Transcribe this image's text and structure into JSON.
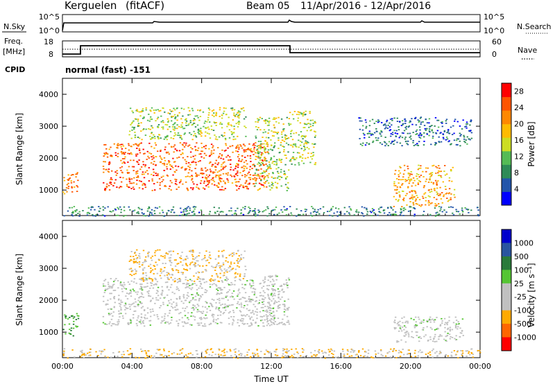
{
  "header": {
    "station": "Kerguelen",
    "processing": "(fitACF)",
    "beam": "Beam 05",
    "date_range": "11/Apr/2016 - 12/Apr/2016"
  },
  "status_panels": {
    "nsky_label": "N.Sky",
    "nsky_ticks": [
      "10^5",
      "10^0"
    ],
    "nsearch_label": "N.Search",
    "nsearch_ticks": [
      "10^5",
      "10^0"
    ],
    "freq_label_top": "Freq.",
    "freq_label_unit": "[MHz]",
    "freq_ticks": [
      "18",
      "8"
    ],
    "nave_label": "Nave",
    "nave_ticks": [
      "60",
      "0"
    ],
    "cpid_label": "CPID",
    "cpid_text": "normal (fast) -151"
  },
  "colors": {
    "power_scale": [
      "#0000ff",
      "#2255aa",
      "#2e8b57",
      "#55bb55",
      "#ccdd22",
      "#ffbb00",
      "#ff8800",
      "#ff5500",
      "#ff0000"
    ],
    "velocity_scale": [
      "#0000cc",
      "#2a55a0",
      "#2a7a3a",
      "#55c533",
      "#c0c0c0",
      "#c0c0c0",
      "#ffaa00",
      "#ff6600",
      "#ff0000"
    ],
    "ground_scatter": "#c0c0c0"
  },
  "chart_data": [
    {
      "type": "heatmap",
      "name": "power",
      "xlabel": "Time UT",
      "ylabel": "Slant Range [km]",
      "xlim": [
        "00:00",
        "00:00"
      ],
      "ylim": [
        200,
        4500
      ],
      "x_ticks": [
        "00:00",
        "04:00",
        "08:00",
        "12:00",
        "16:00",
        "20:00",
        "00:00"
      ],
      "y_ticks": [
        1000,
        2000,
        3000,
        4000
      ],
      "colorbar_label": "Power [dB]",
      "colorbar_ticks": [
        4,
        8,
        12,
        16,
        20,
        24,
        28
      ],
      "colorbar_range": [
        0,
        30
      ],
      "features": [
        {
          "t_start": 0.0,
          "t_end": 0.9,
          "r_low": 900,
          "r_high": 1600,
          "value": 22
        },
        {
          "t_start": 2.3,
          "t_end": 11.8,
          "r_low": 1000,
          "r_high": 2500,
          "value": 24
        },
        {
          "t_start": 11.0,
          "t_end": 13.0,
          "r_low": 1000,
          "r_high": 3300,
          "value": 14
        },
        {
          "t_start": 3.8,
          "t_end": 10.5,
          "r_low": 2600,
          "r_high": 3600,
          "value": 14
        },
        {
          "t_start": 13.0,
          "t_end": 14.5,
          "r_low": 1800,
          "r_high": 3500,
          "value": 14
        },
        {
          "t_start": 17.0,
          "t_end": 23.5,
          "r_low": 2400,
          "r_high": 3300,
          "value": 6
        },
        {
          "t_start": 19.0,
          "t_end": 22.5,
          "r_low": 500,
          "r_high": 1800,
          "value": 20
        },
        {
          "t_start": 0.0,
          "t_end": 24.0,
          "r_low": 200,
          "r_high": 500,
          "value": 8
        }
      ]
    },
    {
      "type": "heatmap",
      "name": "velocity",
      "xlabel": "Time UT",
      "ylabel": "Slant Range [km]",
      "xlim": [
        "00:00",
        "00:00"
      ],
      "ylim": [
        200,
        4500
      ],
      "x_ticks": [
        "00:00",
        "04:00",
        "08:00",
        "12:00",
        "16:00",
        "20:00",
        "00:00"
      ],
      "y_ticks": [
        1000,
        2000,
        3000,
        4000
      ],
      "colorbar_label": "Velocity [m s⁻¹]",
      "colorbar_ticks": [
        "1000",
        "500",
        "100",
        "25",
        "-25",
        "-100",
        "-500",
        "-1000"
      ],
      "features": [
        {
          "t_start": 0.0,
          "t_end": 0.9,
          "r_low": 900,
          "r_high": 1600,
          "value": 100
        },
        {
          "t_start": 2.3,
          "t_end": 12.2,
          "r_low": 1200,
          "r_high": 2700,
          "value": 0
        },
        {
          "t_start": 11.5,
          "t_end": 13.0,
          "r_low": 1200,
          "r_high": 2800,
          "value": 0
        },
        {
          "t_start": 3.8,
          "t_end": 10.5,
          "r_low": 2600,
          "r_high": 3600,
          "value": -100
        },
        {
          "t_start": 19.0,
          "t_end": 23.0,
          "r_low": 700,
          "r_high": 1500,
          "value": 0
        },
        {
          "t_start": 0.0,
          "t_end": 24.0,
          "r_low": 200,
          "r_high": 500,
          "value": -100
        }
      ]
    }
  ]
}
